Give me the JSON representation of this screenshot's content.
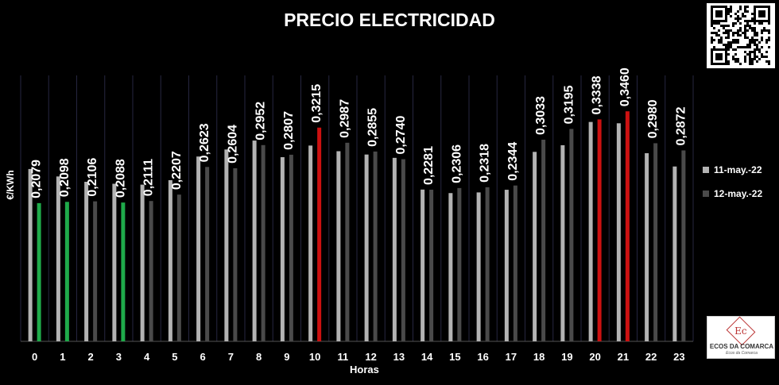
{
  "chart_data": {
    "type": "bar",
    "title": "PRECIO ELECTRICIDAD",
    "xlabel": "Horas",
    "ylabel": "€/KWh",
    "categories": [
      "0",
      "1",
      "2",
      "3",
      "4",
      "5",
      "6",
      "7",
      "8",
      "9",
      "10",
      "11",
      "12",
      "13",
      "14",
      "15",
      "16",
      "17",
      "18",
      "19",
      "20",
      "21",
      "22",
      "23"
    ],
    "series": [
      {
        "name": "11-may.-22",
        "color": "#b3b3b3",
        "values": [
          0.2592,
          0.248,
          0.24,
          0.237,
          0.2357,
          0.2424,
          0.278,
          0.2886,
          0.302,
          0.277,
          0.2945,
          0.286,
          0.281,
          0.276,
          0.2283,
          0.223,
          0.224,
          0.228,
          0.285,
          0.295,
          0.33,
          0.328,
          0.283,
          0.263
        ]
      },
      {
        "name": "12-may.-22",
        "color": "#4a4a4a",
        "values": [
          0.2079,
          0.2098,
          0.2106,
          0.2088,
          0.2111,
          0.2207,
          0.2623,
          0.2604,
          0.2952,
          0.2807,
          0.3215,
          0.2987,
          0.2855,
          0.274,
          0.2281,
          0.2306,
          0.2318,
          0.2344,
          0.3033,
          0.3195,
          0.3338,
          0.346,
          0.298,
          0.2872
        ]
      }
    ],
    "data_labels": [
      "0,2079",
      "0,2098",
      "0,2106",
      "0,2088",
      "0,2111",
      "0,2207",
      "0,2623",
      "0,2604",
      "0,2952",
      "0,2807",
      "0,3215",
      "0,2987",
      "0,2855",
      "0,2740",
      "0,2281",
      "0,2306",
      "0,2318",
      "0,2344",
      "0,3033",
      "0,3195",
      "0,3338",
      "0,3460",
      "0,2980",
      "0,2872"
    ],
    "highlight_low_hours": [
      0,
      1,
      3
    ],
    "highlight_high_hours": [
      10,
      20,
      21
    ],
    "highlight_low_color": "#1faa4a",
    "highlight_high_color": "#cc1111",
    "ylim": [
      0,
      0.4
    ],
    "grid": "vertical",
    "legend_position": "right"
  },
  "legend": {
    "series1_label": "11-may.-22",
    "series2_label": "12-may.-22"
  },
  "branding": {
    "logo_mark": "Ec",
    "logo_name": "ECOS DA COMARCA",
    "logo_tagline": "Ecos da Comarca"
  }
}
